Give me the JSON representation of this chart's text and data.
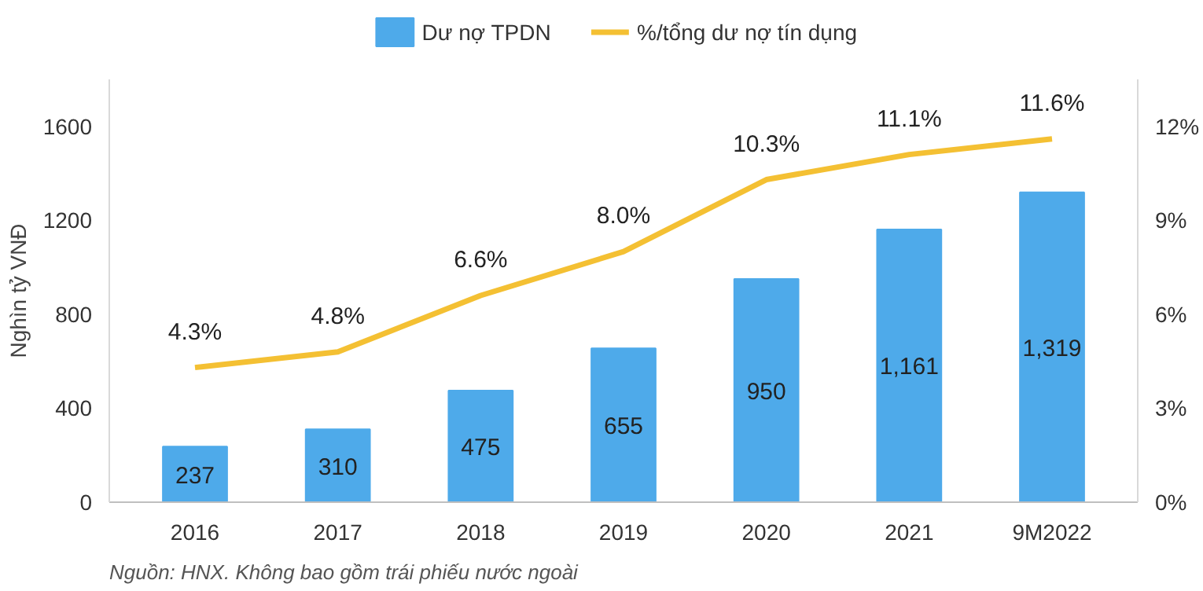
{
  "chart_data": {
    "type": "bar",
    "categories": [
      "2016",
      "2017",
      "2018",
      "2019",
      "2020",
      "2021",
      "9M2022"
    ],
    "ylabel": "Nghìn tỷ VNĐ",
    "ylim": [
      0,
      1800
    ],
    "yticks": [
      0,
      400,
      800,
      1200,
      1600
    ],
    "y2lim": [
      0,
      13.5
    ],
    "y2ticks": [
      {
        "value": 0,
        "label": "0%"
      },
      {
        "value": 3,
        "label": "3%"
      },
      {
        "value": 6,
        "label": "6%"
      },
      {
        "value": 9,
        "label": "9%"
      },
      {
        "value": 12,
        "label": "12%"
      }
    ],
    "legend": "top",
    "series": [
      {
        "name": "Dư nợ TPDN",
        "color": "#4eaaea",
        "values": [
          237,
          310,
          475,
          655,
          950,
          1161,
          1319
        ],
        "value_labels": [
          "237",
          "310",
          "475",
          "655",
          "950",
          "1,161",
          "1,319"
        ]
      },
      {
        "name": "%/tổng dư nợ tín dụng",
        "type": "line",
        "axis": "y2",
        "color": "#f4c033",
        "values": [
          4.3,
          4.8,
          6.6,
          8.0,
          10.3,
          11.1,
          11.6
        ],
        "value_labels": [
          "4.3%",
          "4.8%",
          "6.6%",
          "8.0%",
          "10.3%",
          "11.1%",
          "11.6%"
        ]
      }
    ],
    "annotations": [
      "Nguồn: HNX. Không bao gồm trái phiếu nước ngoài"
    ]
  }
}
